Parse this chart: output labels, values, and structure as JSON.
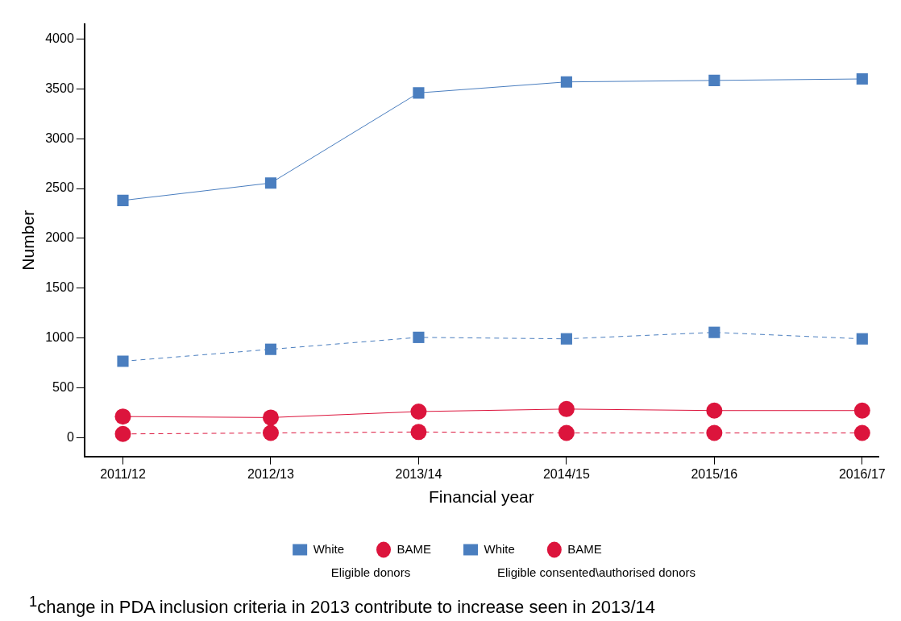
{
  "chart_data": {
    "type": "line",
    "xlabel": "Financial year",
    "ylabel": "Number",
    "categories": [
      "2011/12",
      "2012/13",
      "2013/14",
      "2014/15",
      "2015/16",
      "2016/17"
    ],
    "series": [
      {
        "name": "White",
        "color": "#4a7ebf",
        "marker": "square",
        "line_style": "solid",
        "values": [
          2380,
          2555,
          3460,
          3570,
          3585,
          3600
        ]
      },
      {
        "name": "BAME",
        "color": "#dc143c",
        "marker": "circle",
        "line_style": "solid",
        "values": [
          210,
          200,
          260,
          285,
          270,
          270
        ]
      },
      {
        "name": "White",
        "color": "#4a7ebf",
        "marker": "square",
        "line_style": "dashed",
        "values": [
          765,
          885,
          1005,
          990,
          1055,
          990
        ]
      },
      {
        "name": "BAME",
        "color": "#dc143c",
        "marker": "circle",
        "line_style": "dashed",
        "values": [
          35,
          45,
          55,
          45,
          45,
          45
        ]
      }
    ],
    "ylim": [
      -190,
      4150
    ],
    "yticks": [
      0,
      500,
      1000,
      1500,
      2000,
      2500,
      3000,
      3500,
      4000
    ],
    "grid": false,
    "legend": "bottom",
    "annotations": [
      "Eligible donors",
      "Eligible consented\\authorised donors",
      "$^{1}$change in PDA inclusion criteria in 2013 contribute to increase seen in 2013/14"
    ]
  }
}
